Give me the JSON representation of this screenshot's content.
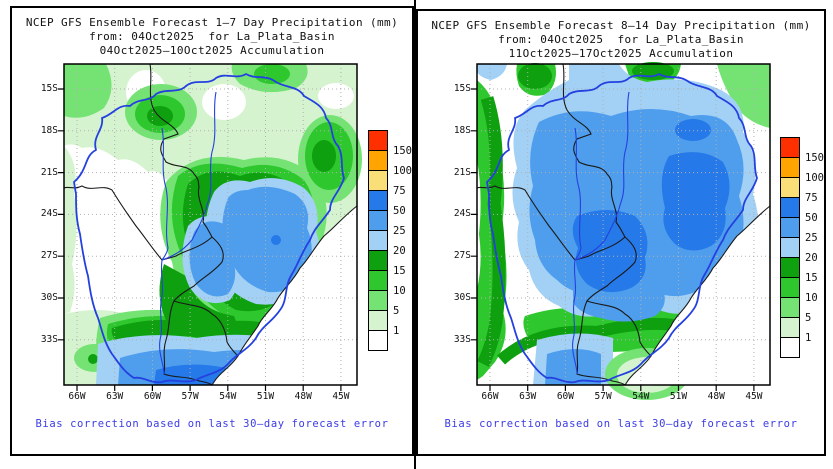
{
  "page": {
    "background": "#FFFFFF"
  },
  "caption_color": "#3B3BE6",
  "panels": [
    {
      "title_line1": "NCEP GFS Ensemble Forecast 1–7 Day Precipitation (mm)",
      "title_line2": "from: 04Oct2025  for La_Plata_Basin",
      "title_line3": "04Oct2025–10Oct2025 Accumulation",
      "caption": "Bias correction based on last 30–day forecast error",
      "lat_labels": [
        "15S",
        "18S",
        "21S",
        "24S",
        "27S",
        "30S",
        "33S"
      ],
      "lon_labels": [
        "66W",
        "63W",
        "60W",
        "57W",
        "54W",
        "51W",
        "48W",
        "45W"
      ],
      "legend": {
        "values": [
          "150",
          "100",
          "75",
          "50",
          "25",
          "20",
          "15",
          "10",
          "5",
          "1"
        ],
        "colors": [
          "#FF3000",
          "#FFA400",
          "#FADF79",
          "#2579E8",
          "#4F9EED",
          "#A3D1F5",
          "#0EA00E",
          "#2EC82E",
          "#74E374",
          "#D5F3CE",
          "#FFFFFF"
        ]
      }
    },
    {
      "title_line1": "NCEP GFS Ensemble Forecast 8–14 Day Precipitation (mm)",
      "title_line2": "from: 04Oct2025  for La_Plata_Basin",
      "title_line3": "11Oct2025–17Oct2025 Accumulation",
      "caption": "Bias correction based on last 30–day forecast error",
      "lat_labels": [
        "15S",
        "18S",
        "21S",
        "24S",
        "27S",
        "30S",
        "33S"
      ],
      "lon_labels": [
        "66W",
        "63W",
        "60W",
        "57W",
        "54W",
        "51W",
        "48W",
        "45W"
      ],
      "legend": {
        "values": [
          "150",
          "100",
          "75",
          "50",
          "25",
          "20",
          "15",
          "10",
          "5",
          "1"
        ],
        "colors": [
          "#FF3000",
          "#FFA400",
          "#FADF79",
          "#2579E8",
          "#4F9EED",
          "#A3D1F5",
          "#0EA00E",
          "#2EC82E",
          "#74E374",
          "#D5F3CE",
          "#FFFFFF"
        ]
      }
    }
  ],
  "chart_data": {
    "type": "heatmap",
    "description": "Two precipitation accumulation maps (mm) over the La Plata Basin from the NCEP GFS ensemble, initialized 04Oct2025: days 1–7 (04Oct–10Oct) and days 8–14 (11Oct–17Oct), bias corrected using the last 30-day forecast error.",
    "colorbar_mm": [
      1,
      5,
      10,
      15,
      20,
      25,
      50,
      75,
      100,
      150
    ],
    "colorbar_colors_low_to_high": [
      "#FFFFFF",
      "#D5F3CE",
      "#74E374",
      "#2EC82E",
      "#0EA00E",
      "#A3D1F5",
      "#4F9EED",
      "#2579E8",
      "#FADF79",
      "#FFA400",
      "#FF3000"
    ],
    "lat_ticks": [
      "15S",
      "18S",
      "21S",
      "24S",
      "27S",
      "30S",
      "33S"
    ],
    "lon_ticks": [
      "66W",
      "63W",
      "60W",
      "57W",
      "54W",
      "51W",
      "48W",
      "45W"
    ],
    "panel_summaries": [
      "Week 1: 20–75 mm (blue) over NE Argentina, Paraguay–Brazil border and far south; 5–20 mm greens across the north; near zero (white) in the west.",
      "Week 2: widespread 25–75 mm (blue) over most of the basin interior; 10–20 mm greens on west/south rim; near zero (white) along southeast Atlantic coast."
    ]
  }
}
